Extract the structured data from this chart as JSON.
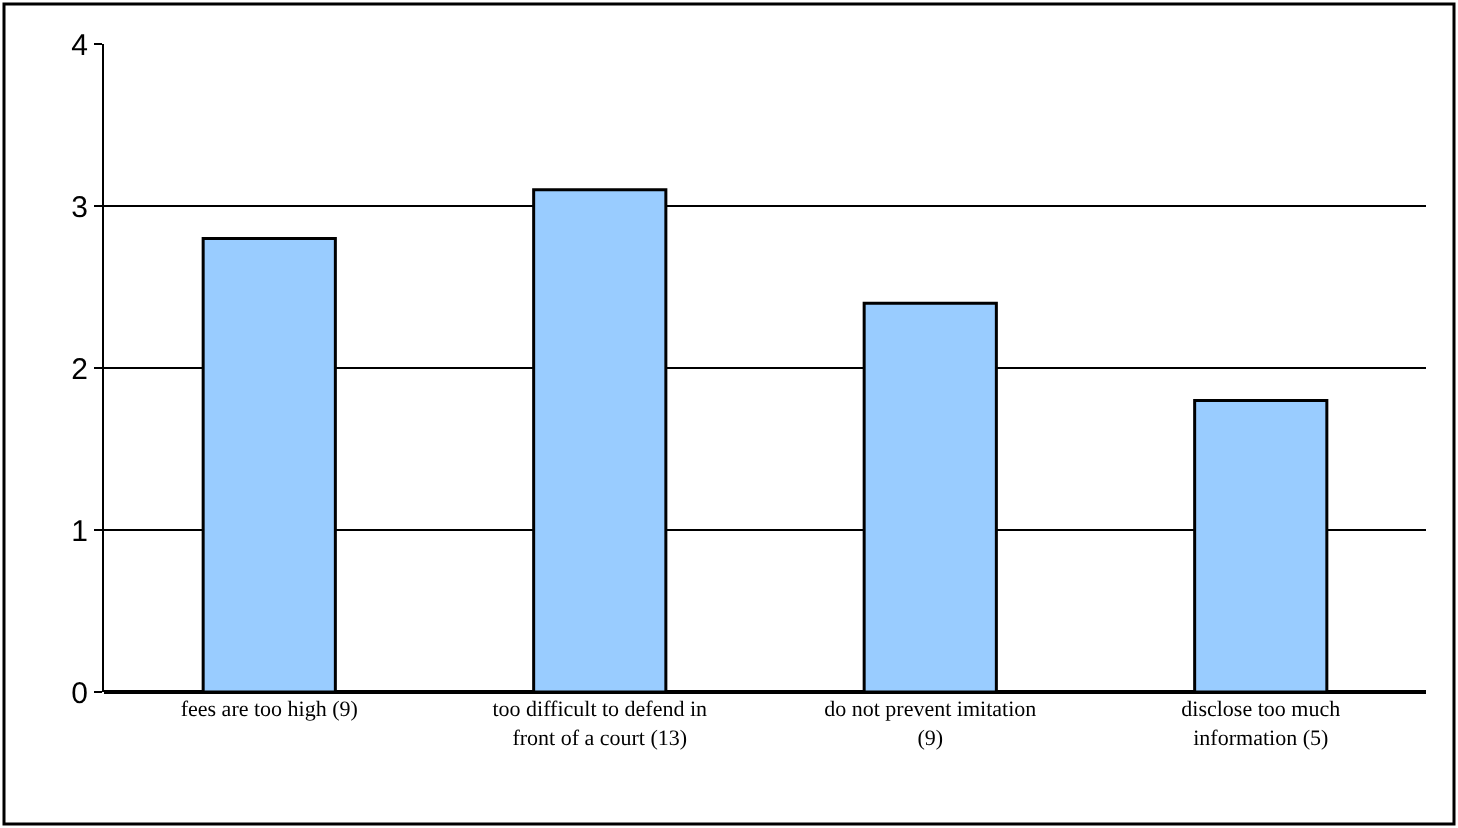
{
  "chart_data": {
    "type": "bar",
    "categories": [
      "fees are too high (9)",
      "too difficult to defend in front of a court (13)",
      "do not prevent imitation (9)",
      "disclose too much information (5)"
    ],
    "values": [
      2.8,
      3.1,
      2.4,
      1.8
    ],
    "color": "#99ccff",
    "ylim": [
      0,
      4
    ],
    "yticks": [
      0,
      1,
      2,
      3,
      4
    ],
    "grid": "y",
    "legend": false
  }
}
